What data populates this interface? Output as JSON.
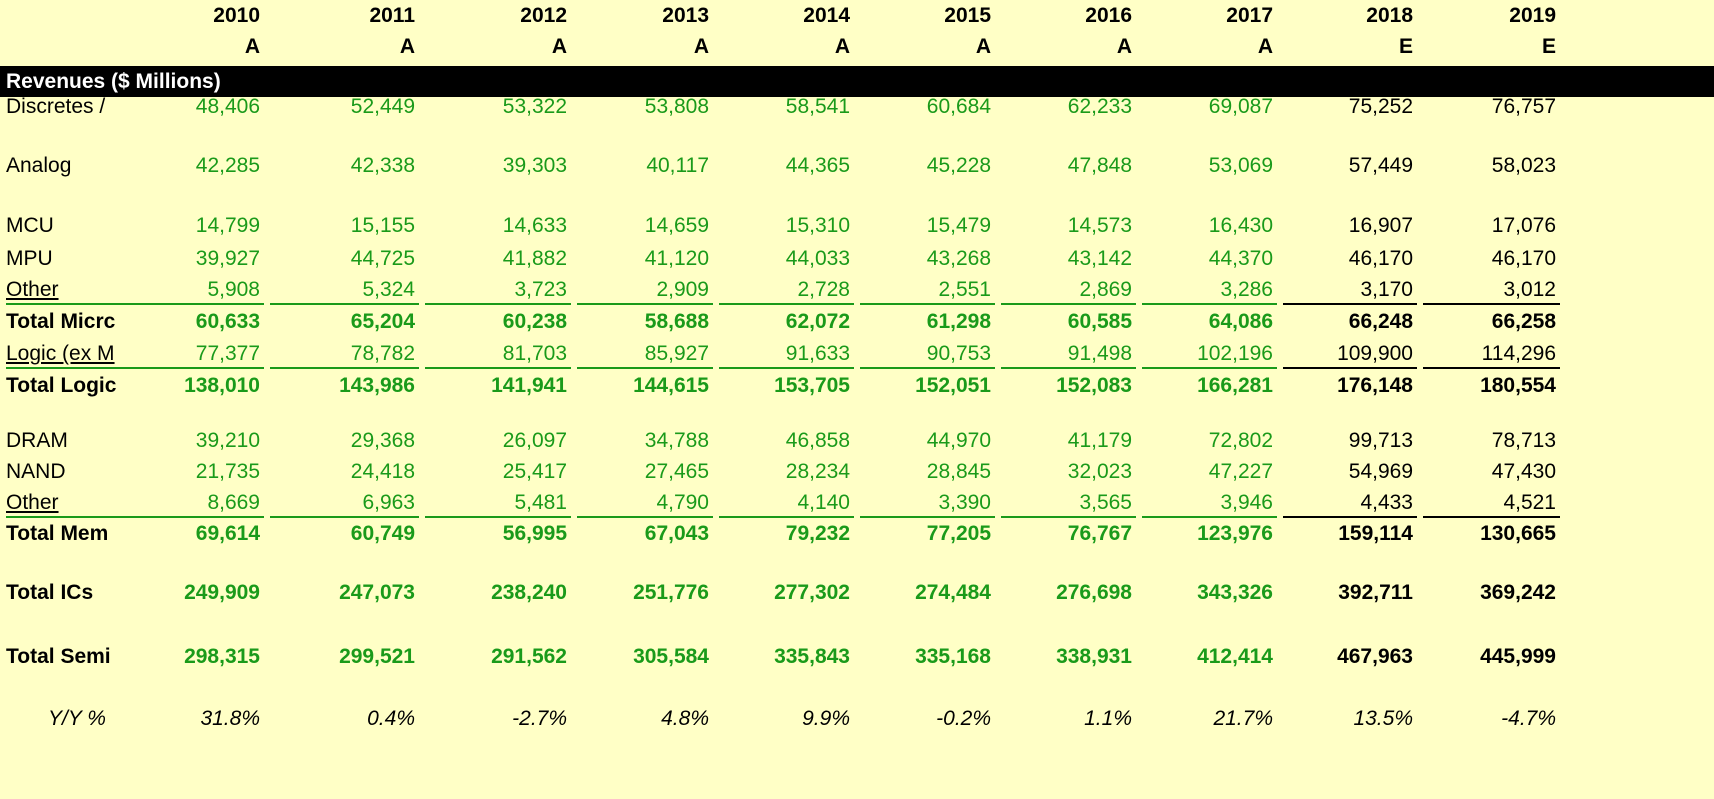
{
  "header": {
    "years": [
      "2010",
      "2011",
      "2012",
      "2013",
      "2014",
      "2015",
      "2016",
      "2017",
      "2018",
      "2019"
    ],
    "flags": [
      "A",
      "A",
      "A",
      "A",
      "A",
      "A",
      "A",
      "A",
      "E",
      "E"
    ]
  },
  "section_title": "Revenues ($ Millions)",
  "rows": [
    {
      "label": "Discretes /",
      "style": "normal",
      "underline": false,
      "values": [
        "48,406",
        "52,449",
        "53,322",
        "53,808",
        "58,541",
        "60,684",
        "62,233",
        "69,087",
        "75,252",
        "76,757"
      ]
    },
    {
      "label": "Analog",
      "style": "normal",
      "underline": false,
      "values": [
        "42,285",
        "42,338",
        "39,303",
        "40,117",
        "44,365",
        "45,228",
        "47,848",
        "53,069",
        "57,449",
        "58,023"
      ]
    },
    {
      "label": "MCU",
      "style": "normal",
      "underline": false,
      "values": [
        "14,799",
        "15,155",
        "14,633",
        "14,659",
        "15,310",
        "15,479",
        "14,573",
        "16,430",
        "16,907",
        "17,076"
      ]
    },
    {
      "label": "MPU",
      "style": "normal",
      "underline": false,
      "values": [
        "39,927",
        "44,725",
        "41,882",
        "41,120",
        "44,033",
        "43,268",
        "43,142",
        "44,370",
        "46,170",
        "46,170"
      ]
    },
    {
      "label": "Other",
      "style": "normal",
      "underline": true,
      "values": [
        "5,908",
        "5,324",
        "3,723",
        "2,909",
        "2,728",
        "2,551",
        "2,869",
        "3,286",
        "3,170",
        "3,012"
      ]
    },
    {
      "label": "Total Micrc",
      "style": "bold",
      "underline": false,
      "values": [
        "60,633",
        "65,204",
        "60,238",
        "58,688",
        "62,072",
        "61,298",
        "60,585",
        "64,086",
        "66,248",
        "66,258"
      ]
    },
    {
      "label": "Logic (ex M",
      "style": "normal",
      "underline": true,
      "values": [
        "77,377",
        "78,782",
        "81,703",
        "85,927",
        "91,633",
        "90,753",
        "91,498",
        "102,196",
        "109,900",
        "114,296"
      ]
    },
    {
      "label": "Total Logic",
      "style": "bold",
      "underline": false,
      "values": [
        "138,010",
        "143,986",
        "141,941",
        "144,615",
        "153,705",
        "152,051",
        "152,083",
        "166,281",
        "176,148",
        "180,554"
      ]
    },
    {
      "label": "DRAM",
      "style": "normal",
      "underline": false,
      "values": [
        "39,210",
        "29,368",
        "26,097",
        "34,788",
        "46,858",
        "44,970",
        "41,179",
        "72,802",
        "99,713",
        "78,713"
      ]
    },
    {
      "label": "NAND",
      "style": "normal",
      "underline": false,
      "values": [
        "21,735",
        "24,418",
        "25,417",
        "27,465",
        "28,234",
        "28,845",
        "32,023",
        "47,227",
        "54,969",
        "47,430"
      ]
    },
    {
      "label": "Other",
      "style": "normal",
      "underline": true,
      "values": [
        "8,669",
        "6,963",
        "5,481",
        "4,790",
        "4,140",
        "3,390",
        "3,565",
        "3,946",
        "4,433",
        "4,521"
      ]
    },
    {
      "label": "Total Mem",
      "style": "bold",
      "underline": false,
      "values": [
        "69,614",
        "60,749",
        "56,995",
        "67,043",
        "79,232",
        "77,205",
        "76,767",
        "123,976",
        "159,114",
        "130,665"
      ]
    },
    {
      "label": "Total ICs",
      "style": "bold",
      "underline": false,
      "values": [
        "249,909",
        "247,073",
        "238,240",
        "251,776",
        "277,302",
        "274,484",
        "276,698",
        "343,326",
        "392,711",
        "369,242"
      ]
    },
    {
      "label": "Total Semi",
      "style": "bold",
      "underline": false,
      "values": [
        "298,315",
        "299,521",
        "291,562",
        "305,584",
        "335,843",
        "335,168",
        "338,931",
        "412,414",
        "467,963",
        "445,999"
      ]
    }
  ],
  "yoy": {
    "label": "Y/Y %",
    "values": [
      "31.8%",
      "0.4%",
      "-2.7%",
      "4.8%",
      "9.9%",
      "-0.2%",
      "1.1%",
      "21.7%",
      "13.5%",
      "-4.7%"
    ]
  },
  "colors": {
    "background": "#ffffc6",
    "actual_values": "#1a9a1a",
    "estimate_values": "#000000",
    "banner": "#000000"
  }
}
